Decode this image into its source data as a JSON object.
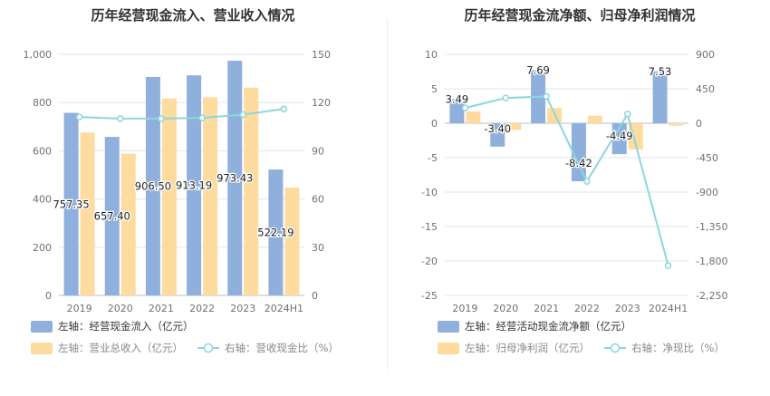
{
  "charts": [
    {
      "title": "历年经营现金流入、营业收入情况",
      "chart_data": {
        "type": "bar",
        "categories": [
          "2019",
          "2020",
          "2021",
          "2022",
          "2023",
          "2024H1"
        ],
        "series": [
          {
            "name": "左轴：经营现金流入（亿元）",
            "kind": "bar",
            "axis": "left",
            "color": "#8fb0dd",
            "values": [
              757.35,
              657.4,
              906.5,
              913.19,
              973.43,
              522.19
            ],
            "labels": [
              "757.35",
              "657.40",
              "906.50",
              "913.19",
              "973.43",
              "522.19"
            ]
          },
          {
            "name": "左轴：营业总收入（亿元）",
            "kind": "bar",
            "axis": "left",
            "color": "#fedb9f",
            "values": [
              676,
              588,
              817,
              822,
              862,
              447
            ]
          },
          {
            "name": "右轴：营收现金比（%）",
            "kind": "line",
            "axis": "right",
            "color": "#8cd7dc",
            "values": [
              111,
              110,
              110,
              110.5,
              112.5,
              116
            ]
          }
        ],
        "left_axis": {
          "ticks": [
            "0",
            "200",
            "400",
            "600",
            "800",
            "1,000"
          ],
          "range": [
            0,
            1000
          ]
        },
        "right_axis": {
          "ticks": [
            "0",
            "30",
            "60",
            "90",
            "120",
            "150"
          ],
          "range": [
            0,
            150
          ]
        },
        "grid": true,
        "legend_position": "bottom"
      }
    },
    {
      "title": "历年经营现金流净额、归母净利润情况",
      "chart_data": {
        "type": "bar",
        "categories": [
          "2019",
          "2020",
          "2021",
          "2022",
          "2023",
          "2024H1"
        ],
        "series": [
          {
            "name": "左轴：经营活动现金流净额（亿元）",
            "kind": "bar",
            "axis": "left",
            "color": "#8fb0dd",
            "values": [
              3.49,
              -3.4,
              7.69,
              -8.42,
              -4.49,
              7.53
            ],
            "labels": [
              "3.49",
              "-3.40",
              "7.69",
              "-8.42",
              "-4.49",
              "7.53"
            ]
          },
          {
            "name": "左轴：归母净利润（亿元）",
            "kind": "bar",
            "axis": "left",
            "color": "#fedb9f",
            "values": [
              1.7,
              -1.0,
              2.2,
              1.1,
              -3.8,
              -0.35
            ]
          },
          {
            "name": "右轴：净现比（%）",
            "kind": "line",
            "axis": "right",
            "color": "#8cd7dc",
            "values": [
              200,
              330,
              350,
              -760,
              120,
              -1860
            ]
          }
        ],
        "left_axis": {
          "ticks": [
            "-25",
            "-20",
            "-15",
            "-10",
            "-5",
            "0",
            "5",
            "10"
          ],
          "range": [
            -25,
            10
          ]
        },
        "right_axis": {
          "ticks": [
            "-2,250",
            "-1,800",
            "-1,350",
            "-900",
            "-450",
            "0",
            "450",
            "900"
          ],
          "range": [
            -2250,
            900
          ]
        },
        "grid": true,
        "legend_position": "bottom"
      }
    }
  ]
}
